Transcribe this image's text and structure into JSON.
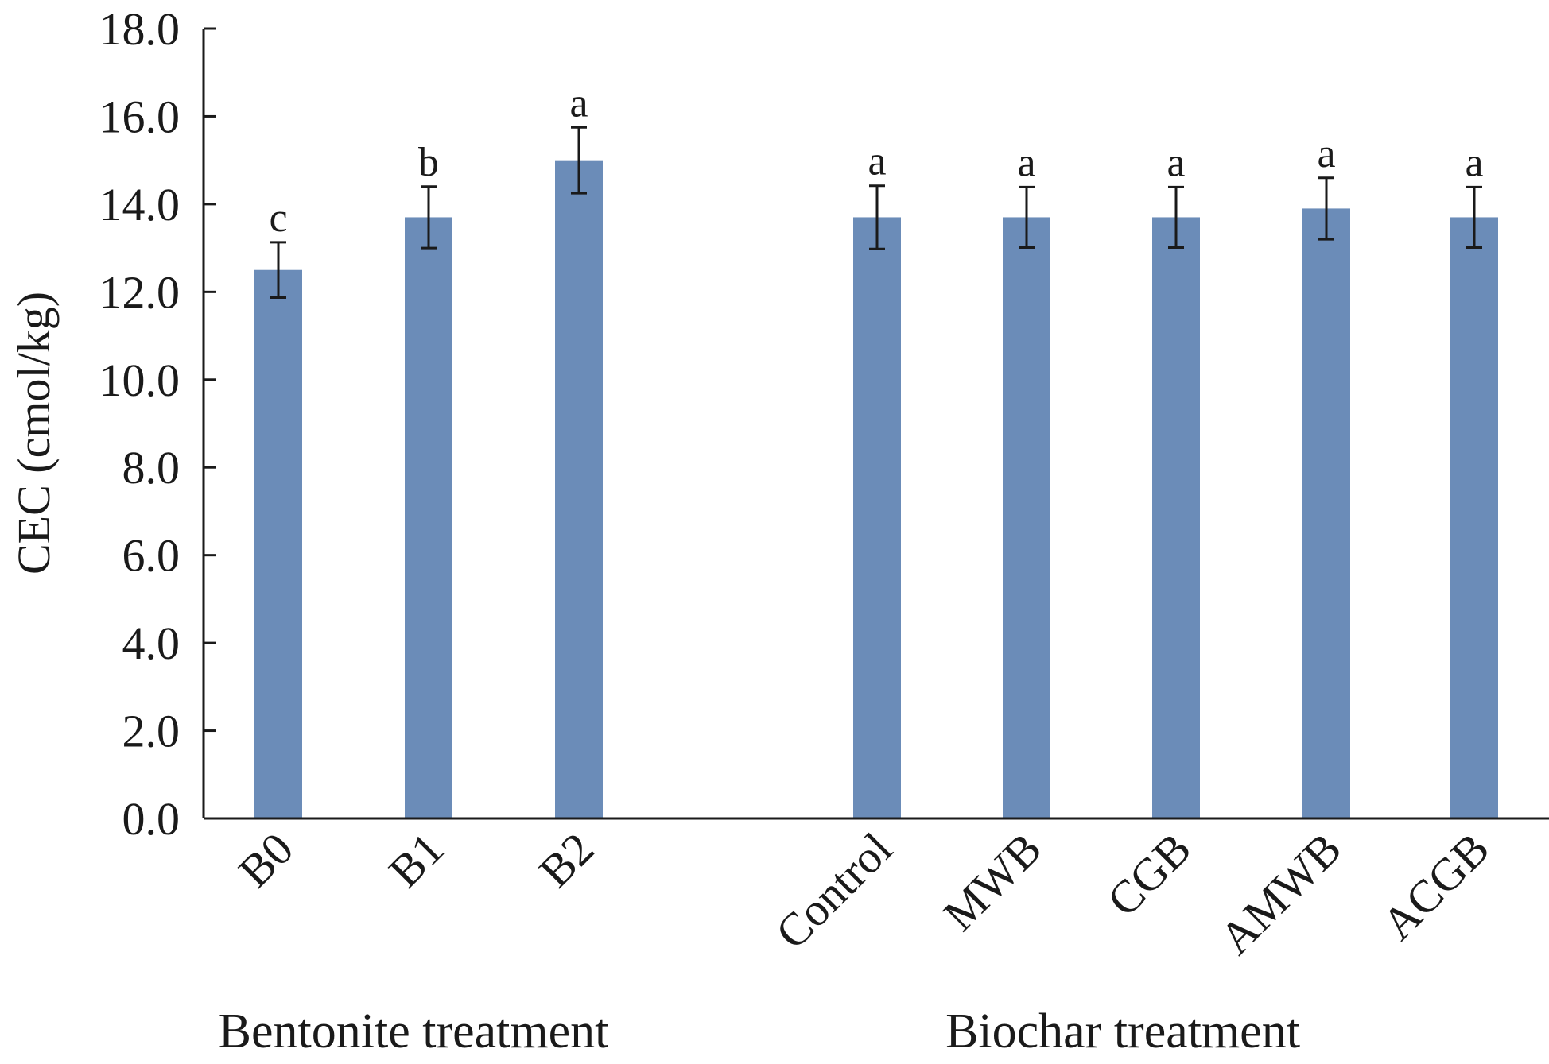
{
  "chart_data": {
    "type": "bar",
    "ylabel": "CEC (cmol/kg)",
    "xlabel": "",
    "ylim": [
      0,
      18
    ],
    "yticks": [
      "0.0",
      "2.0",
      "4.0",
      "6.0",
      "8.0",
      "10.0",
      "12.0",
      "14.0",
      "16.0",
      "18.0"
    ],
    "grid": false,
    "bar_color": "#6b8cb8",
    "groups": [
      {
        "name": "Bentonite treatment",
        "categories": [
          "B0",
          "B1",
          "B2"
        ],
        "values": [
          12.5,
          13.7,
          15.0
        ],
        "errors": [
          0.63,
          0.7,
          0.75
        ],
        "significance": [
          "c",
          "b",
          "a"
        ]
      },
      {
        "name": "Biochar treatment",
        "categories": [
          "Control",
          "MWB",
          "CGB",
          "AMWB",
          "ACGB"
        ],
        "values": [
          13.7,
          13.7,
          13.7,
          13.9,
          13.7
        ],
        "errors": [
          0.72,
          0.69,
          0.69,
          0.7,
          0.69
        ],
        "significance": [
          "a",
          "a",
          "a",
          "a",
          "a"
        ]
      }
    ]
  }
}
